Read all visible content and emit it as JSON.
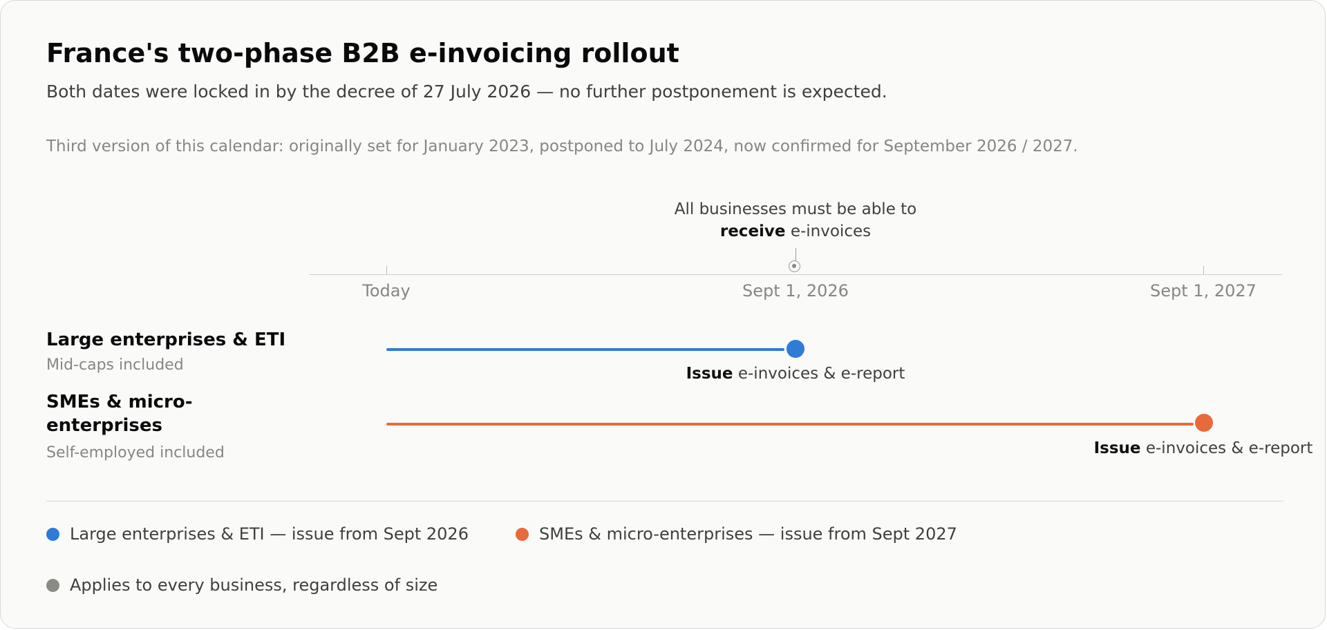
{
  "header": {
    "title": "France's two-phase B2B e-invoicing rollout",
    "subtitle": "Both dates were locked in by the decree of 27 July 2026 — no further postponement is expected.",
    "history": "Third version of this calendar: originally set for January 2023, postponed to July 2024, now confirmed for September 2026 / 2027."
  },
  "timeline": {
    "ticks": [
      "Today",
      "Sept 1, 2026",
      "Sept 1, 2027"
    ],
    "universal_milestone": {
      "line1": "All businesses must be able to",
      "bold": "receive",
      "rest": " e-invoices"
    }
  },
  "rows": [
    {
      "name": "Large enterprises & ETI",
      "sub": "Mid-caps included",
      "end_bold": "Issue",
      "end_rest": " e-invoices & e-report"
    },
    {
      "name": "SMEs & micro-enterprises",
      "sub": "Self-employed included",
      "end_bold": "Issue",
      "end_rest": " e-invoices & e-report"
    }
  ],
  "legend": [
    {
      "label": "Large enterprises & ETI — issue from Sept 2026",
      "color": "#2f7bd8"
    },
    {
      "label": "SMEs & micro-enterprises — issue from Sept 2027",
      "color": "#e8693a"
    },
    {
      "label": "Applies to every business, regardless of size",
      "color": "#8a8a85"
    }
  ],
  "colors": {
    "large": "#2f7bd8",
    "sme": "#e8693a",
    "universal": "#8a8a85"
  }
}
